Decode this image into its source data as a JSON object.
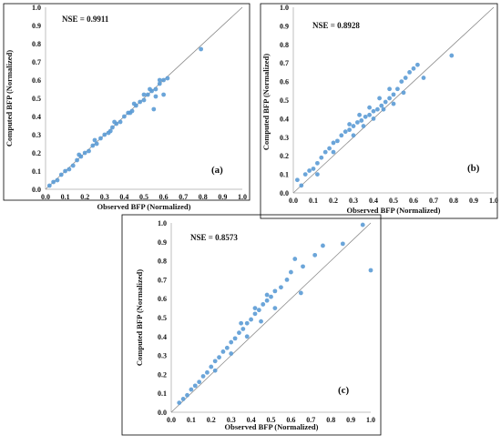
{
  "chart_data": [
    {
      "type": "scatter",
      "panel": "(a)",
      "nse": "NSE = 0.9911",
      "xlabel": "Observed BFP (Normalized)",
      "ylabel": "Computed  BFP (Normalized)",
      "xlim": [
        0,
        1
      ],
      "ylim": [
        0,
        1
      ],
      "xticks": [
        "0.0",
        "0.1",
        "0.2",
        "0.3",
        "0.4",
        "0.5",
        "0.6",
        "0.7",
        "0.8",
        "0.9",
        "1.0"
      ],
      "yticks": [
        "0.0",
        "0.1",
        "0.2",
        "0.3",
        "0.4",
        "0.5",
        "0.6",
        "0.7",
        "0.8",
        "0.9",
        "1.0"
      ],
      "reference_line": "1:1",
      "marker_color": "#5b9bd5",
      "points": [
        [
          0.02,
          0.02
        ],
        [
          0.04,
          0.04
        ],
        [
          0.06,
          0.05
        ],
        [
          0.08,
          0.08
        ],
        [
          0.1,
          0.1
        ],
        [
          0.12,
          0.11
        ],
        [
          0.14,
          0.13
        ],
        [
          0.16,
          0.16
        ],
        [
          0.18,
          0.18
        ],
        [
          0.2,
          0.2
        ],
        [
          0.22,
          0.21
        ],
        [
          0.24,
          0.24
        ],
        [
          0.26,
          0.25
        ],
        [
          0.28,
          0.28
        ],
        [
          0.3,
          0.3
        ],
        [
          0.32,
          0.31
        ],
        [
          0.34,
          0.34
        ],
        [
          0.36,
          0.36
        ],
        [
          0.38,
          0.37
        ],
        [
          0.4,
          0.4
        ],
        [
          0.42,
          0.42
        ],
        [
          0.44,
          0.43
        ],
        [
          0.46,
          0.46
        ],
        [
          0.48,
          0.48
        ],
        [
          0.5,
          0.49
        ],
        [
          0.52,
          0.52
        ],
        [
          0.54,
          0.54
        ],
        [
          0.56,
          0.55
        ],
        [
          0.58,
          0.58
        ],
        [
          0.6,
          0.6
        ],
        [
          0.62,
          0.61
        ],
        [
          0.55,
          0.44
        ],
        [
          0.56,
          0.51
        ],
        [
          0.6,
          0.52
        ],
        [
          0.79,
          0.77
        ],
        [
          0.17,
          0.19
        ],
        [
          0.25,
          0.27
        ],
        [
          0.35,
          0.37
        ],
        [
          0.45,
          0.47
        ],
        [
          0.53,
          0.55
        ],
        [
          0.33,
          0.32
        ],
        [
          0.43,
          0.42
        ],
        [
          0.5,
          0.52
        ],
        [
          0.58,
          0.6
        ]
      ]
    },
    {
      "type": "scatter",
      "panel": "(b)",
      "nse": "NSE = 0.8928",
      "xlabel": "Observed BFP (Normalized)",
      "ylabel": "Computed  BFP (Normalized)",
      "xlim": [
        0,
        1
      ],
      "ylim": [
        0,
        1
      ],
      "xticks": [
        "0.0",
        "0.1",
        "0.2",
        "0.3",
        "0.4",
        "0.5",
        "0.6",
        "0.7",
        "0.8",
        "0.9",
        "1.0"
      ],
      "yticks": [
        "0.0",
        "0.1",
        "0.2",
        "0.3",
        "0.4",
        "0.5",
        "0.6",
        "0.7",
        "0.8",
        "0.9",
        "1.0"
      ],
      "reference_line": "1:1",
      "marker_color": "#5b9bd5",
      "points": [
        [
          0.02,
          0.07
        ],
        [
          0.04,
          0.04
        ],
        [
          0.06,
          0.1
        ],
        [
          0.08,
          0.12
        ],
        [
          0.1,
          0.13
        ],
        [
          0.12,
          0.16
        ],
        [
          0.14,
          0.19
        ],
        [
          0.16,
          0.22
        ],
        [
          0.18,
          0.24
        ],
        [
          0.2,
          0.27
        ],
        [
          0.22,
          0.28
        ],
        [
          0.24,
          0.31
        ],
        [
          0.26,
          0.33
        ],
        [
          0.28,
          0.34
        ],
        [
          0.3,
          0.36
        ],
        [
          0.32,
          0.38
        ],
        [
          0.34,
          0.39
        ],
        [
          0.36,
          0.41
        ],
        [
          0.38,
          0.42
        ],
        [
          0.4,
          0.44
        ],
        [
          0.42,
          0.45
        ],
        [
          0.44,
          0.47
        ],
        [
          0.46,
          0.49
        ],
        [
          0.48,
          0.51
        ],
        [
          0.5,
          0.53
        ],
        [
          0.52,
          0.56
        ],
        [
          0.54,
          0.6
        ],
        [
          0.56,
          0.62
        ],
        [
          0.58,
          0.65
        ],
        [
          0.6,
          0.67
        ],
        [
          0.62,
          0.69
        ],
        [
          0.65,
          0.62
        ],
        [
          0.79,
          0.74
        ],
        [
          0.3,
          0.31
        ],
        [
          0.35,
          0.36
        ],
        [
          0.4,
          0.4
        ],
        [
          0.45,
          0.45
        ],
        [
          0.5,
          0.48
        ],
        [
          0.55,
          0.54
        ],
        [
          0.28,
          0.37
        ],
        [
          0.33,
          0.42
        ],
        [
          0.38,
          0.46
        ],
        [
          0.43,
          0.51
        ],
        [
          0.48,
          0.56
        ],
        [
          0.2,
          0.22
        ],
        [
          0.12,
          0.1
        ]
      ]
    },
    {
      "type": "scatter",
      "panel": "(c)",
      "nse": "NSE = 0.8573",
      "xlabel": "Observed BFP (Normalized)",
      "ylabel": "Computed  BFP (Normalized)",
      "xlim": [
        0,
        1
      ],
      "ylim": [
        0,
        1
      ],
      "xticks": [
        "0.0",
        "0.1",
        "0.2",
        "0.3",
        "0.4",
        "0.5",
        "0.6",
        "0.7",
        "0.8",
        "0.9",
        "1.0"
      ],
      "yticks": [
        "0.0",
        "0.1",
        "0.2",
        "0.3",
        "0.4",
        "0.5",
        "0.6",
        "0.7",
        "0.8",
        "0.9",
        "1.0"
      ],
      "reference_line": "1:1",
      "marker_color": "#5b9bd5",
      "points": [
        [
          0.04,
          0.05
        ],
        [
          0.06,
          0.07
        ],
        [
          0.08,
          0.09
        ],
        [
          0.1,
          0.12
        ],
        [
          0.12,
          0.14
        ],
        [
          0.14,
          0.16
        ],
        [
          0.16,
          0.19
        ],
        [
          0.18,
          0.21
        ],
        [
          0.2,
          0.24
        ],
        [
          0.22,
          0.27
        ],
        [
          0.24,
          0.29
        ],
        [
          0.26,
          0.32
        ],
        [
          0.28,
          0.34
        ],
        [
          0.3,
          0.37
        ],
        [
          0.32,
          0.39
        ],
        [
          0.34,
          0.42
        ],
        [
          0.36,
          0.44
        ],
        [
          0.38,
          0.47
        ],
        [
          0.4,
          0.49
        ],
        [
          0.42,
          0.52
        ],
        [
          0.44,
          0.54
        ],
        [
          0.46,
          0.57
        ],
        [
          0.48,
          0.59
        ],
        [
          0.5,
          0.61
        ],
        [
          0.52,
          0.64
        ],
        [
          0.55,
          0.66
        ],
        [
          0.58,
          0.7
        ],
        [
          0.6,
          0.74
        ],
        [
          0.62,
          0.81
        ],
        [
          0.66,
          0.77
        ],
        [
          0.72,
          0.83
        ],
        [
          0.76,
          0.88
        ],
        [
          0.86,
          0.89
        ],
        [
          0.96,
          0.99
        ],
        [
          1.0,
          0.75
        ],
        [
          0.65,
          0.63
        ],
        [
          0.22,
          0.22
        ],
        [
          0.3,
          0.31
        ],
        [
          0.38,
          0.4
        ],
        [
          0.45,
          0.48
        ],
        [
          0.52,
          0.55
        ],
        [
          0.35,
          0.47
        ],
        [
          0.42,
          0.55
        ],
        [
          0.48,
          0.62
        ]
      ]
    }
  ]
}
